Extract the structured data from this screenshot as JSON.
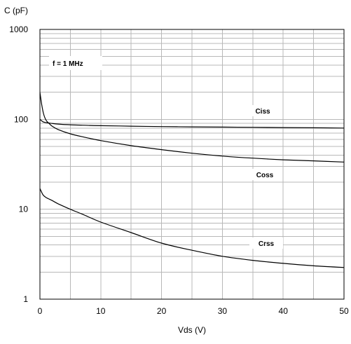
{
  "chart_data": {
    "type": "line",
    "title": "",
    "xlabel": "Vds (V)",
    "ylabel": "C (pF)",
    "xlim": [
      0,
      50
    ],
    "ylim": [
      1,
      1000
    ],
    "y_scale": "log",
    "grid": true,
    "x_ticks": [
      "0",
      "10",
      "20",
      "30",
      "40",
      "50"
    ],
    "y_ticks": [
      "1",
      "10",
      "100",
      "1000"
    ],
    "annotation": "f = 1 MHz",
    "series": [
      {
        "name": "Ciss",
        "x": [
          0,
          0.5,
          1,
          2,
          3,
          5,
          7,
          10,
          15,
          20,
          25,
          30,
          35,
          40,
          45,
          50
        ],
        "values": [
          100,
          94,
          92,
          90,
          88.5,
          87,
          86,
          85,
          84,
          83,
          82.5,
          82,
          81.5,
          81,
          80.5,
          80
        ]
      },
      {
        "name": "Coss",
        "x": [
          0,
          0.3,
          0.6,
          1,
          1.5,
          2,
          3,
          5,
          7,
          10,
          15,
          20,
          25,
          30,
          35,
          40,
          45,
          50
        ],
        "values": [
          200,
          145,
          115,
          98,
          90,
          84,
          77,
          69,
          64,
          58,
          51,
          46,
          42,
          39,
          37,
          35.5,
          34.5,
          33.5
        ]
      },
      {
        "name": "Crss",
        "x": [
          0,
          0.5,
          1,
          2,
          3,
          5,
          7,
          10,
          15,
          20,
          25,
          30,
          35,
          40,
          45,
          50
        ],
        "values": [
          17,
          14.5,
          13.5,
          12.5,
          11.5,
          10,
          8.8,
          7.2,
          5.5,
          4.2,
          3.5,
          3.0,
          2.7,
          2.5,
          2.35,
          2.25
        ]
      }
    ]
  }
}
